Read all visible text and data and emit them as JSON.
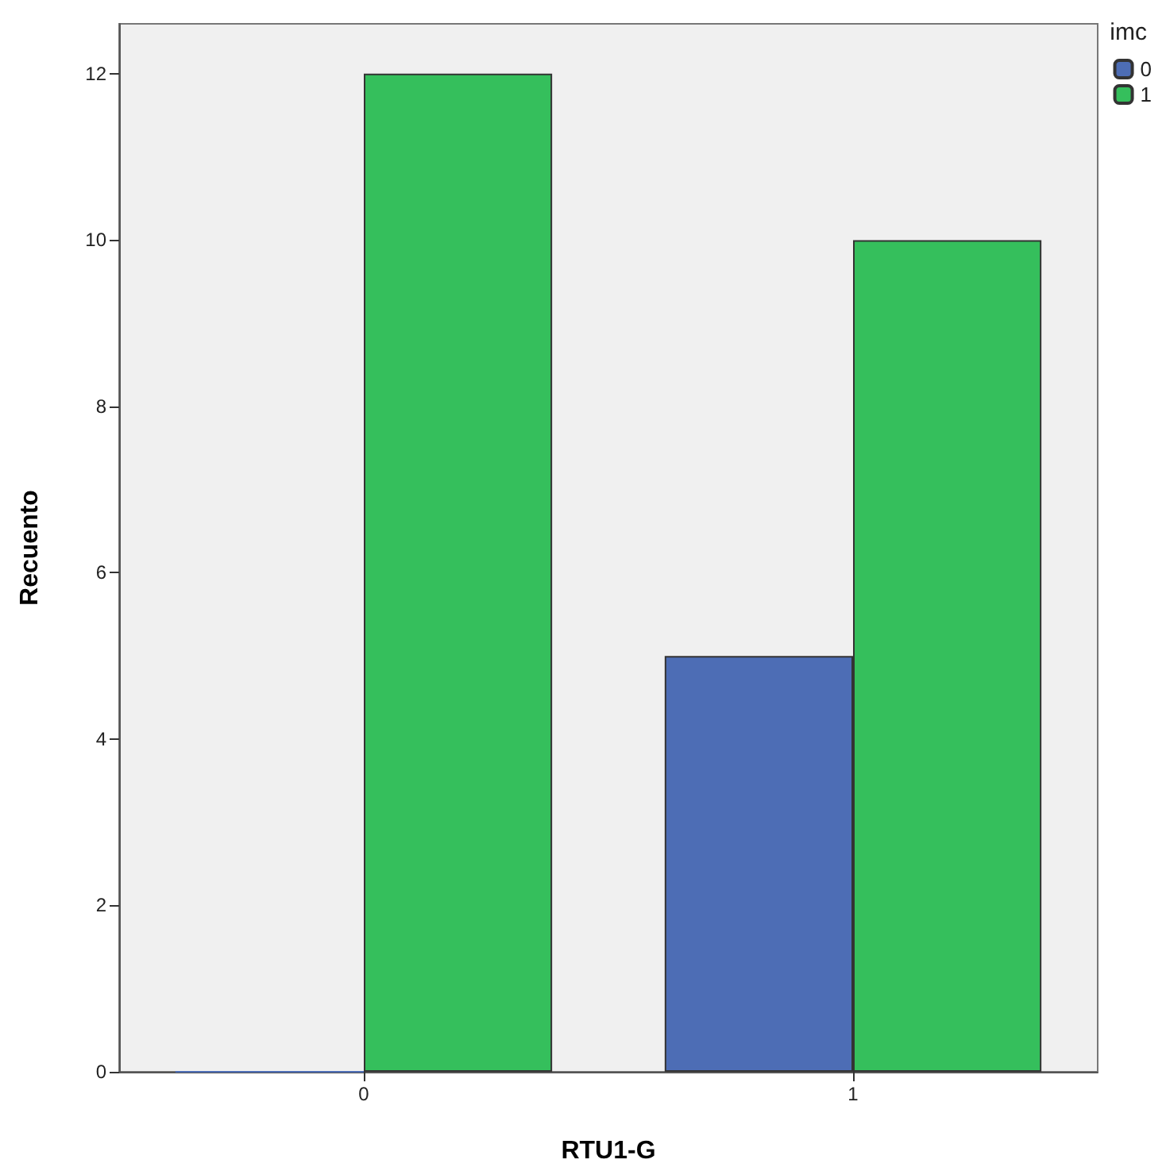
{
  "chart_data": {
    "type": "bar",
    "xlabel": "RTU1-G",
    "ylabel": "Recuento",
    "legend_title": "imc",
    "categories": [
      "0",
      "1"
    ],
    "series": [
      {
        "name": "0",
        "color": "#4d6db5",
        "values": [
          0,
          5
        ]
      },
      {
        "name": "1",
        "color": "#35bf5c",
        "values": [
          12,
          10
        ]
      }
    ],
    "ylim": [
      0,
      12.6
    ],
    "yticks": [
      0,
      2,
      4,
      6,
      8,
      10,
      12
    ],
    "grid": false,
    "legend": "top right"
  }
}
